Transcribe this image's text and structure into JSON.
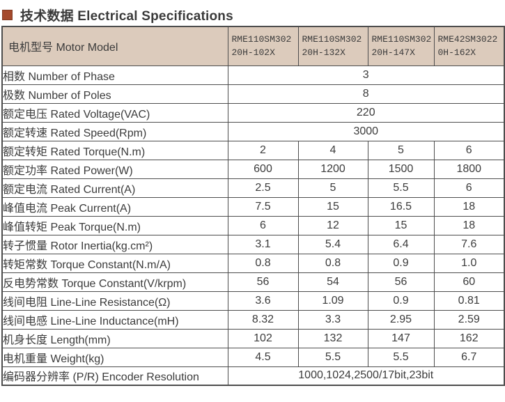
{
  "title": {
    "text": "技术数据 Electrical Specifications"
  },
  "colors": {
    "bullet": "#a4492c",
    "header_bg": "#dccbbc",
    "border": "#4d4d4d",
    "text": "#3b3b3b"
  },
  "table": {
    "header": {
      "label": "电机型号 Motor Model",
      "models": [
        "RME110SM302\n20H-102X",
        "RME110SM302\n20H-132X",
        "RME110SM302\n20H-147X",
        "RME42SM3022\n0H-162X"
      ]
    },
    "rows": [
      {
        "label": "相数 Number of Phase",
        "span": "3"
      },
      {
        "label": "极数 Number of Poles",
        "span": "8"
      },
      {
        "label": "额定电压 Rated Voltage(VAC)",
        "span": "220"
      },
      {
        "label": "额定转速 Rated Speed(Rpm)",
        "span": "3000"
      },
      {
        "label": "额定转矩 Rated Torque(N.m)",
        "values": [
          "2",
          "4",
          "5",
          "6"
        ]
      },
      {
        "label": "额定功率 Rated Power(W)",
        "values": [
          "600",
          "1200",
          "1500",
          "1800"
        ]
      },
      {
        "label": "额定电流 Rated Current(A)",
        "values": [
          "2.5",
          "5",
          "5.5",
          "6"
        ]
      },
      {
        "label": "峰值电流 Peak Current(A)",
        "values": [
          "7.5",
          "15",
          "16.5",
          "18"
        ]
      },
      {
        "label": "峰值转矩 Peak Torque(N.m)",
        "values": [
          "6",
          "12",
          "15",
          "18"
        ]
      },
      {
        "label": "转子惯量 Rotor Inertia(kg.cm²)",
        "values": [
          "3.1",
          "5.4",
          "6.4",
          "7.6"
        ]
      },
      {
        "label": "转矩常数 Torque Constant(N.m/A)",
        "values": [
          "0.8",
          "0.8",
          "0.9",
          "1.0"
        ]
      },
      {
        "label": "反电势常数 Torque Constant(V/krpm)",
        "values": [
          "56",
          "54",
          "56",
          "60"
        ]
      },
      {
        "label": "线间电阻 Line-Line Resistance(Ω)",
        "values": [
          "3.6",
          "1.09",
          "0.9",
          "0.81"
        ]
      },
      {
        "label": "线间电感 Line-Line Inductance(mH)",
        "values": [
          "8.32",
          "3.3",
          "2.95",
          "2.59"
        ]
      },
      {
        "label": "机身长度 Length(mm)",
        "values": [
          "102",
          "132",
          "147",
          "162"
        ]
      },
      {
        "label": "电机重量 Weight(kg)",
        "values": [
          "4.5",
          "5.5",
          "5.5",
          "6.7"
        ]
      },
      {
        "label": "编码器分辨率 (P/R) Encoder Resolution",
        "span": "1000,1024,2500/17bit,23bit"
      }
    ]
  }
}
